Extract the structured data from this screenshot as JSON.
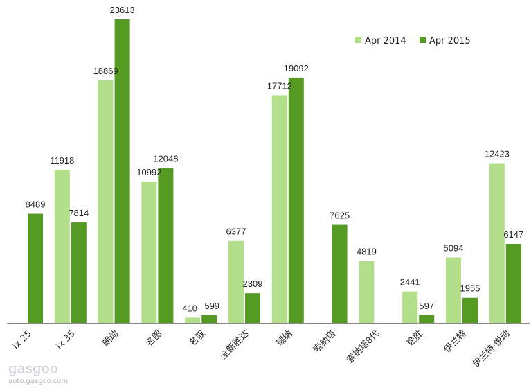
{
  "chart_data": {
    "type": "bar",
    "title": "",
    "xlabel": "",
    "ylabel": "",
    "ylim": [
      0,
      23613
    ],
    "grid": false,
    "legend_position": "top-right",
    "categories": [
      "ix 25",
      "ix 35",
      "朗动",
      "名图",
      "名驭",
      "全新胜达",
      "瑞纳",
      "索纳塔",
      "索纳塔8代",
      "途胜",
      "伊兰特",
      "伊兰特·悦动"
    ],
    "series": [
      {
        "name": "Apr 2014",
        "color": "#b3df8a",
        "values": [
          null,
          11918,
          18869,
          10992,
          410,
          6377,
          17712,
          null,
          4819,
          2441,
          5094,
          12423
        ]
      },
      {
        "name": "Apr 2015",
        "color": "#559a22",
        "values": [
          8489,
          7814,
          23613,
          12048,
          599,
          2309,
          19092,
          7625,
          null,
          597,
          1955,
          6147
        ]
      }
    ]
  },
  "watermark": {
    "logo": "gasgoo",
    "site": "auto.gasgoo.com"
  }
}
